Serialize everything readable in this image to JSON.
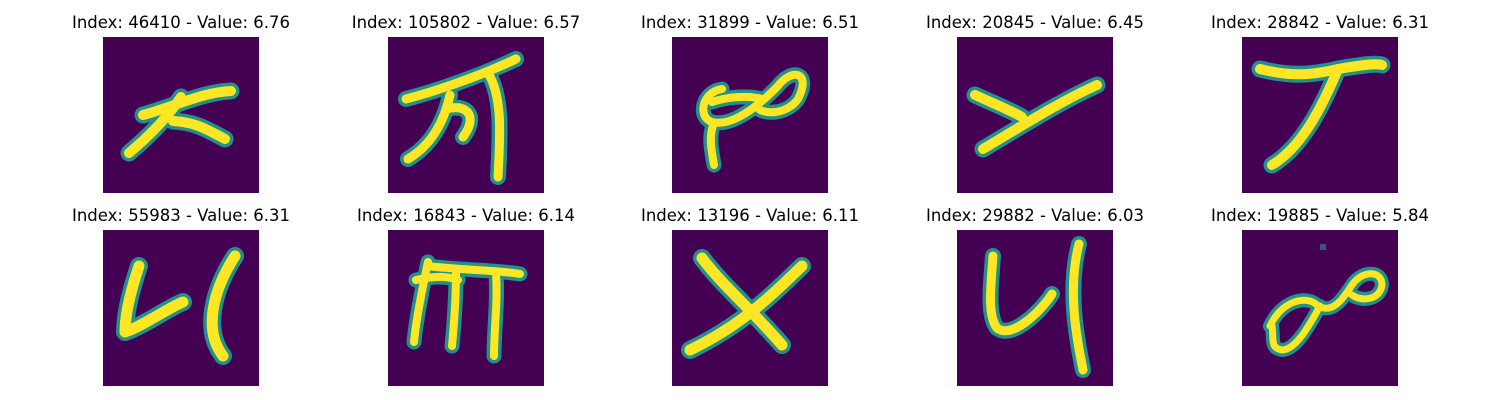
{
  "colors": {
    "background": "#440154",
    "stroke_edge": "#22908c",
    "stroke_core": "#fde725"
  },
  "panels": [
    {
      "title": "Index: 46410 - Value: 6.76"
    },
    {
      "title": "Index: 105802 - Value: 6.57"
    },
    {
      "title": "Index: 31899 - Value: 6.51"
    },
    {
      "title": "Index: 20845 - Value: 6.45"
    },
    {
      "title": "Index: 28842 - Value: 6.31"
    },
    {
      "title": "Index: 55983 - Value: 6.31"
    },
    {
      "title": "Index: 16843 - Value: 6.14"
    },
    {
      "title": "Index: 13196 - Value: 6.11"
    },
    {
      "title": "Index: 29882 - Value: 6.03"
    },
    {
      "title": "Index: 19885 - Value: 5.84"
    }
  ]
}
